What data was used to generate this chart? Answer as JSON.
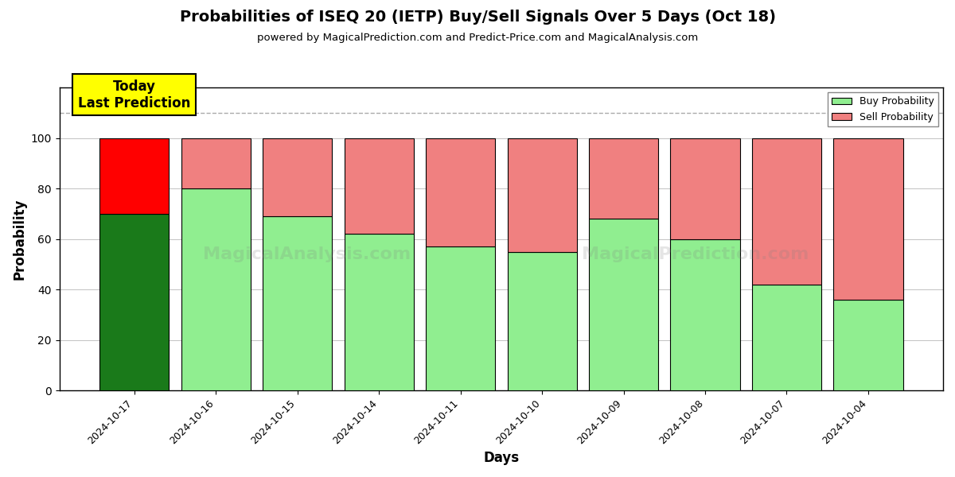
{
  "title": "Probabilities of ISEQ 20 (IETP) Buy/Sell Signals Over 5 Days (Oct 18)",
  "subtitle": "powered by MagicalPrediction.com and Predict-Price.com and MagicalAnalysis.com",
  "xlabel": "Days",
  "ylabel": "Probability",
  "dates": [
    "2024-10-17",
    "2024-10-16",
    "2024-10-15",
    "2024-10-14",
    "2024-10-11",
    "2024-10-10",
    "2024-10-09",
    "2024-10-08",
    "2024-10-07",
    "2024-10-04"
  ],
  "buy_probs": [
    70,
    80,
    69,
    62,
    57,
    55,
    68,
    60,
    42,
    36
  ],
  "sell_probs": [
    30,
    20,
    31,
    38,
    43,
    45,
    32,
    40,
    58,
    64
  ],
  "today_buy_color": "#1a7a1a",
  "today_sell_color": "#ff0000",
  "other_buy_color": "#90EE90",
  "other_sell_color": "#F08080",
  "bar_edge_color": "#000000",
  "ylim": [
    0,
    120
  ],
  "yticks": [
    0,
    20,
    40,
    60,
    80,
    100
  ],
  "dashed_line_y": 110,
  "background_color": "#ffffff",
  "grid_color": "#aaaaaa",
  "annotation_text": "Today\nLast Prediction",
  "annotation_bg": "#ffff00",
  "legend_labels": [
    "Buy Probability",
    "Sell Probability"
  ],
  "legend_buy_color": "#90EE90",
  "legend_sell_color": "#F08080",
  "bar_width": 0.85,
  "watermark1": "MagicalAnalysis.com",
  "watermark2": "MagicalPrediction.com"
}
